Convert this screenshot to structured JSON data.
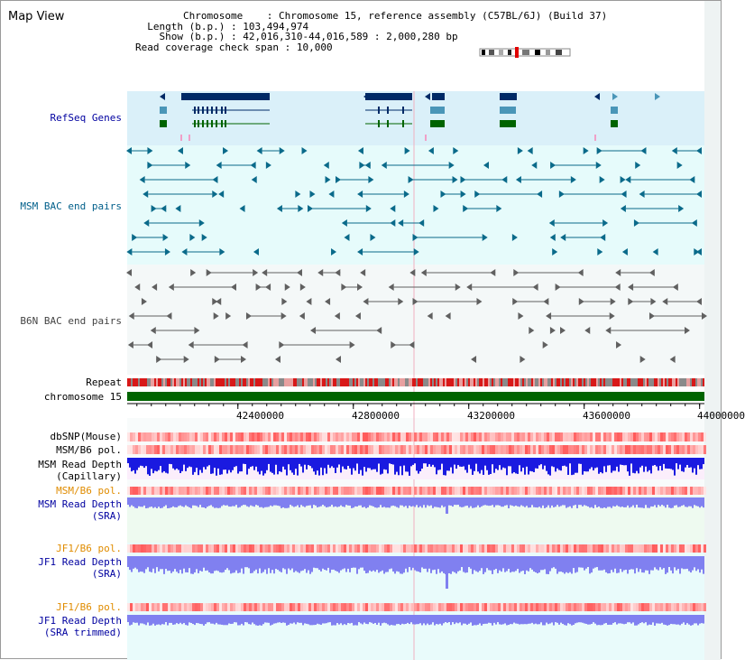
{
  "view": {
    "title": "Map View"
  },
  "info": {
    "chromosome_label": "Chromosome",
    "chromosome_value": "Chromosome 15, reference assembly (C57BL/6J) (Build 37)",
    "length_label": "Length (b.p.)",
    "length_value": "103,494,974",
    "show_label": "Show (b.p.)",
    "show_value": "42,016,310-44,016,589 : 2,000,280 bp",
    "coverage_label": "Read coverage check span",
    "coverage_value": "10,000"
  },
  "tracks": {
    "refseq": {
      "label": "RefSeq Genes",
      "color": "#0000a0"
    },
    "msm_bac": {
      "label": "MSM BAC end pairs",
      "color": "#005f8a"
    },
    "b6n_bac": {
      "label": "B6N BAC end pairs",
      "color": "#444444"
    },
    "repeat": {
      "label": "Repeat"
    },
    "chromosome": {
      "label": "chromosome 15"
    },
    "dbsnp": {
      "label": "dbSNP(Mouse)"
    },
    "msm_pol": {
      "label": "MSM/B6 pol."
    },
    "msm_depth_cap": {
      "label_line1": "MSM Read Depth",
      "label_line2": "(Capillary)"
    },
    "msm_pol2": {
      "label": "MSM/B6 pol."
    },
    "msm_depth_sra": {
      "label_line1": "MSM Read Depth",
      "label_line2": "(SRA)"
    },
    "jf1_pol": {
      "label": "JF1/B6 pol."
    },
    "jf1_depth_sra": {
      "label_line1": "JF1 Read Depth",
      "label_line2": "(SRA)"
    },
    "jf1_pol2": {
      "label": "JF1/B6 pol."
    },
    "jf1_depth_trim": {
      "label_line1": "JF1 Read Depth",
      "label_line2": "(SRA trimmed)"
    }
  },
  "axis": {
    "ticks": [
      "42400000",
      "42800000",
      "43200000",
      "43600000",
      "44000000"
    ],
    "tick_values": [
      42400000,
      42800000,
      43200000,
      43600000,
      44000000
    ],
    "range": [
      42016310,
      44016589
    ]
  },
  "colors": {
    "gene_band": "#daf0f9",
    "bac_band": "#e6fbfb",
    "light_band": "#f5fbfd",
    "gene": "#002a66",
    "gene_light": "#4a96b8",
    "gene_green": "#006400",
    "msm_feature": "#0a6a8a",
    "b6n_feature": "#606060",
    "chromosome": "#006400",
    "depth_dark": "#1a1ae0",
    "depth_light": "#8080f0"
  }
}
